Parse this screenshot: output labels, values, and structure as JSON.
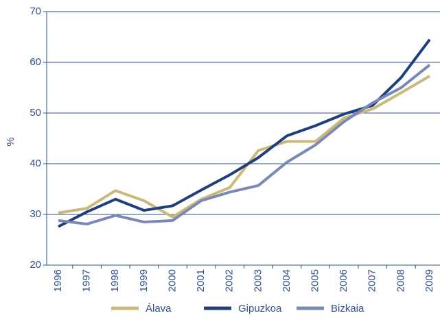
{
  "chart_data": {
    "type": "line",
    "y_label": "%",
    "categories": [
      "1996",
      "1997",
      "1998",
      "1999",
      "2000",
      "2001",
      "2002",
      "2003",
      "2004",
      "2005",
      "2006",
      "2007",
      "2008",
      "2009"
    ],
    "series": [
      {
        "name": "Álava",
        "color": "#c9b97a",
        "values": [
          30.3,
          31.2,
          34.7,
          32.7,
          29.5,
          33.0,
          35.3,
          42.6,
          44.4,
          44.4,
          49.0,
          50.8,
          54.0,
          57.3
        ]
      },
      {
        "name": "Gipuzkoa",
        "color": "#1f3f7a",
        "values": [
          27.6,
          30.5,
          33.0,
          30.8,
          31.7,
          34.8,
          37.8,
          41.2,
          45.5,
          47.5,
          49.8,
          51.5,
          57.0,
          64.5
        ]
      },
      {
        "name": "Bizkaia",
        "color": "#7a88b8",
        "values": [
          28.8,
          28.1,
          29.8,
          28.5,
          28.8,
          32.7,
          34.4,
          35.7,
          40.3,
          43.7,
          48.3,
          52.0,
          55.0,
          59.5
        ]
      }
    ],
    "ylim": [
      20,
      70
    ],
    "yticks": [
      20,
      30,
      40,
      50,
      60,
      70
    ],
    "grid": true
  }
}
